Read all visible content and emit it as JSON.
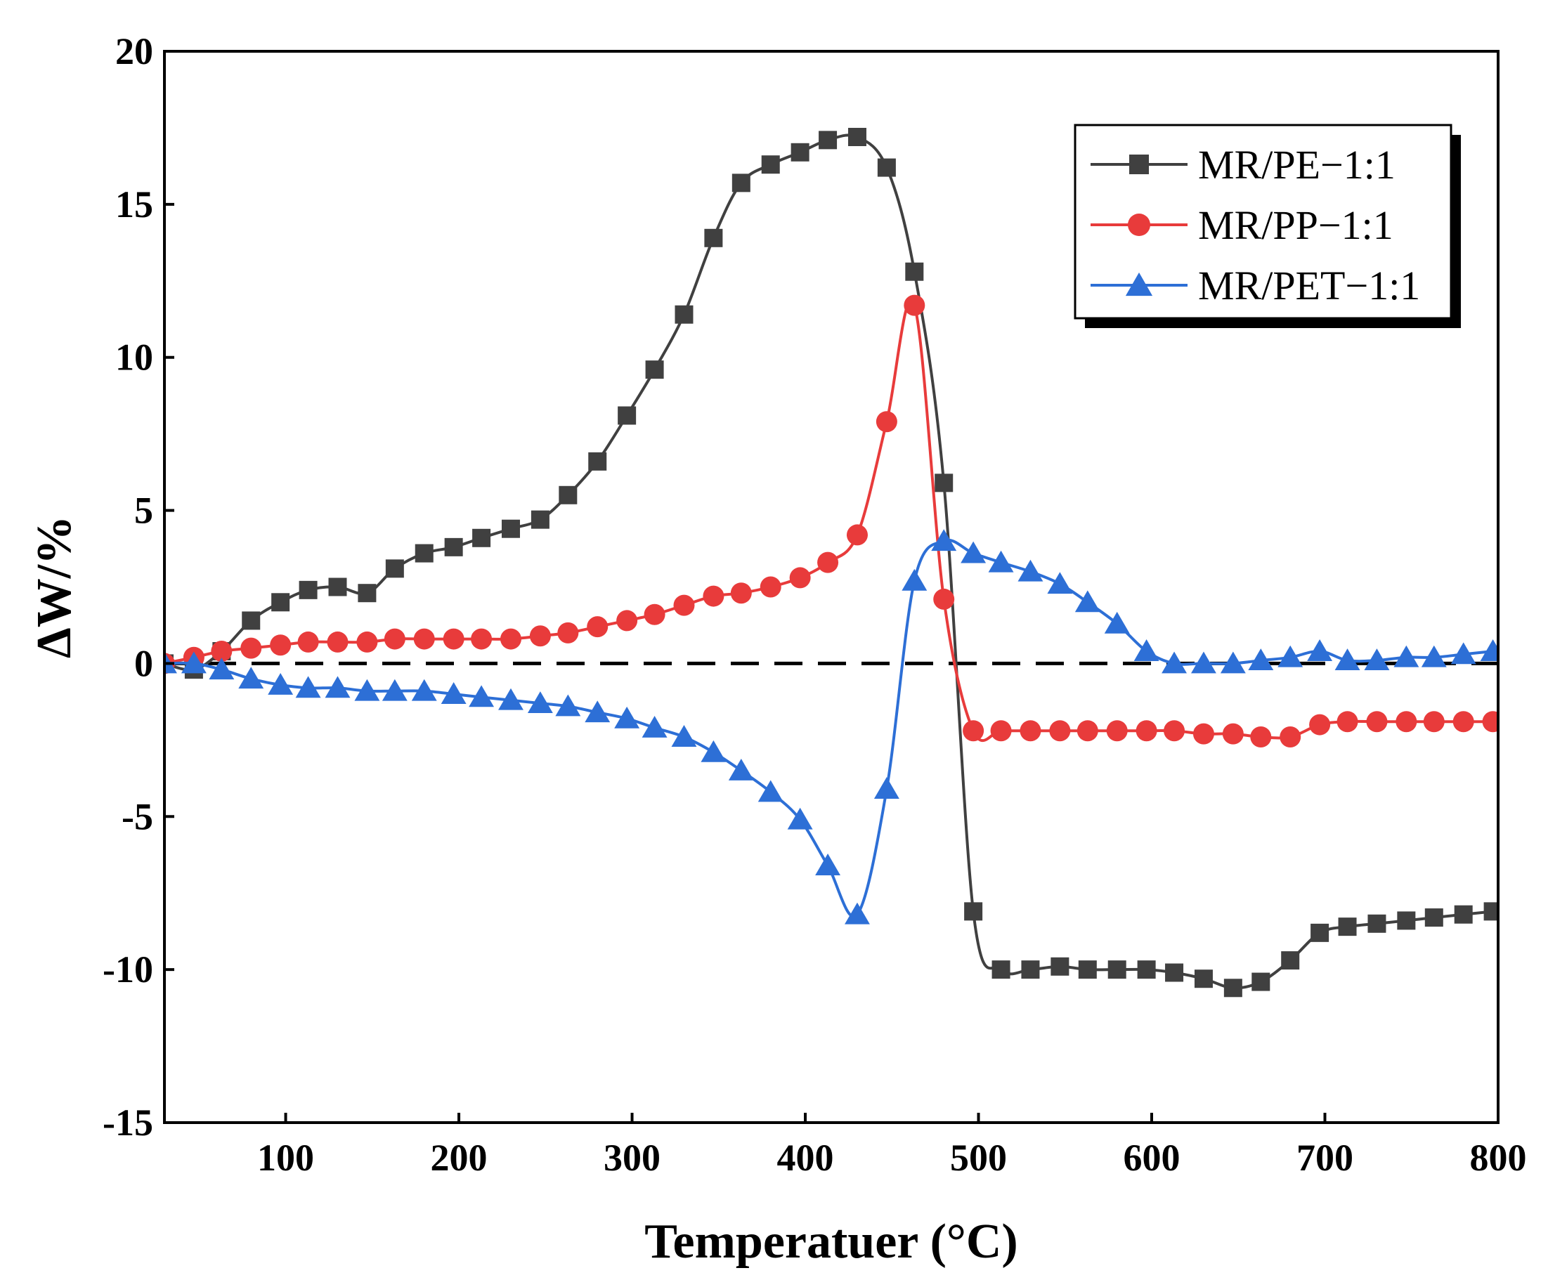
{
  "chart_data": {
    "type": "line",
    "title": "",
    "xlabel": "Temperatuer (°C)",
    "ylabel": "ΔW/%",
    "xlim": [
      30,
      800
    ],
    "ylim": [
      -15,
      20
    ],
    "xticks": [
      100,
      200,
      300,
      400,
      500,
      600,
      700,
      800
    ],
    "yticks": [
      20,
      15,
      10,
      5,
      0,
      -5,
      -10,
      -15
    ],
    "reference_line": {
      "y": 0,
      "style": "dashed",
      "color": "#000000"
    },
    "legend_position": "top-right",
    "series": [
      {
        "name": "MR/PE−1:1",
        "marker": "square",
        "color": "#404040",
        "x": [
          30,
          47,
          63,
          80,
          97,
          113,
          130,
          147,
          163,
          180,
          197,
          213,
          230,
          247,
          263,
          280,
          297,
          313,
          330,
          347,
          363,
          380,
          397,
          413,
          430,
          447,
          463,
          480,
          497,
          513,
          530,
          547,
          563,
          580,
          597,
          613,
          630,
          647,
          663,
          680,
          697,
          713,
          730,
          747,
          763,
          780,
          797
        ],
        "y": [
          0,
          -0.2,
          0.4,
          1.4,
          2.0,
          2.4,
          2.5,
          2.3,
          3.1,
          3.6,
          3.8,
          4.1,
          4.4,
          4.7,
          5.5,
          6.6,
          8.1,
          9.6,
          11.4,
          13.9,
          15.7,
          16.3,
          16.7,
          17.1,
          17.2,
          16.2,
          12.8,
          5.9,
          -8.1,
          -10.0,
          -10.0,
          -9.9,
          -10.0,
          -10.0,
          -10.0,
          -10.1,
          -10.3,
          -10.6,
          -10.4,
          -9.7,
          -8.8,
          -8.6,
          -8.5,
          -8.4,
          -8.3,
          -8.2,
          -8.1
        ]
      },
      {
        "name": "MR/PP−1:1",
        "marker": "circle",
        "color": "#e83b3b",
        "x": [
          30,
          47,
          63,
          80,
          97,
          113,
          130,
          147,
          163,
          180,
          197,
          213,
          230,
          247,
          263,
          280,
          297,
          313,
          330,
          347,
          363,
          380,
          397,
          413,
          430,
          447,
          463,
          480,
          497,
          513,
          530,
          547,
          563,
          580,
          597,
          613,
          630,
          647,
          663,
          680,
          697,
          713,
          730,
          747,
          763,
          780,
          797
        ],
        "y": [
          0,
          0.2,
          0.4,
          0.5,
          0.6,
          0.7,
          0.7,
          0.7,
          0.8,
          0.8,
          0.8,
          0.8,
          0.8,
          0.9,
          1.0,
          1.2,
          1.4,
          1.6,
          1.9,
          2.2,
          2.3,
          2.5,
          2.8,
          3.3,
          4.2,
          7.9,
          11.7,
          2.1,
          -2.2,
          -2.2,
          -2.2,
          -2.2,
          -2.2,
          -2.2,
          -2.2,
          -2.2,
          -2.3,
          -2.3,
          -2.4,
          -2.4,
          -2.0,
          -1.9,
          -1.9,
          -1.9,
          -1.9,
          -1.9,
          -1.9
        ]
      },
      {
        "name": "MR/PET−1:1",
        "marker": "triangle",
        "color": "#2d6fd6",
        "x": [
          30,
          47,
          63,
          80,
          97,
          113,
          130,
          147,
          163,
          180,
          197,
          213,
          230,
          247,
          263,
          280,
          297,
          313,
          330,
          347,
          363,
          380,
          397,
          413,
          430,
          447,
          463,
          480,
          497,
          513,
          530,
          547,
          563,
          580,
          597,
          613,
          630,
          647,
          663,
          680,
          697,
          713,
          730,
          747,
          763,
          780,
          797
        ],
        "y": [
          0,
          0,
          -0.2,
          -0.5,
          -0.7,
          -0.8,
          -0.8,
          -0.9,
          -0.9,
          -0.9,
          -1.0,
          -1.1,
          -1.2,
          -1.3,
          -1.4,
          -1.6,
          -1.8,
          -2.1,
          -2.4,
          -2.9,
          -3.5,
          -4.2,
          -5.1,
          -6.6,
          -8.2,
          -4.1,
          2.7,
          4.0,
          3.6,
          3.3,
          3.0,
          2.6,
          2.0,
          1.3,
          0.4,
          0.0,
          0.0,
          0.0,
          0.1,
          0.2,
          0.4,
          0.1,
          0.1,
          0.2,
          0.2,
          0.3,
          0.4
        ]
      }
    ]
  }
}
